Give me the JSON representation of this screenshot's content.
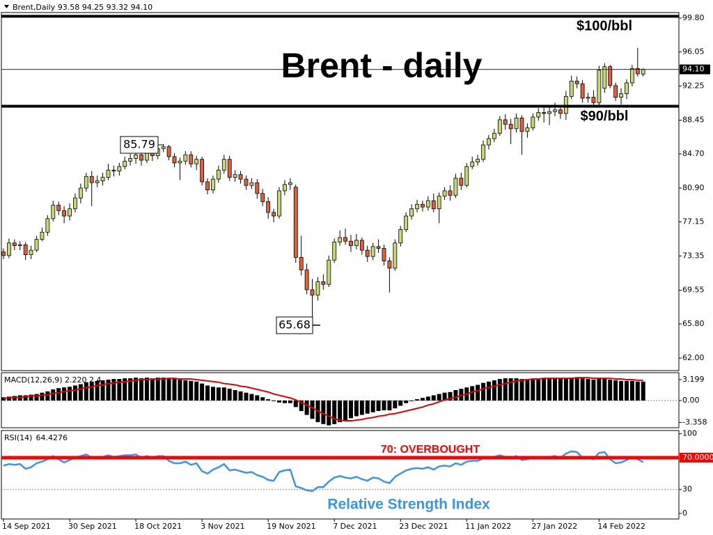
{
  "chart_data": {
    "type": "candlestick",
    "header": "Brent,Daily  93.58 94.25 93.32 94.10",
    "title": "Brent - daily",
    "categories": [
      "14 Sep 2021",
      null,
      null,
      null,
      null,
      null,
      null,
      null,
      null,
      null,
      null,
      null,
      "30 Sep 2021",
      null,
      null,
      null,
      null,
      null,
      null,
      null,
      null,
      null,
      null,
      null,
      "18 Oct 2021",
      null,
      null,
      null,
      null,
      null,
      null,
      null,
      null,
      null,
      null,
      null,
      "3 Nov 2021",
      null,
      null,
      null,
      null,
      null,
      null,
      null,
      null,
      null,
      null,
      null,
      "19 Nov 2021",
      null,
      null,
      null,
      null,
      null,
      null,
      null,
      null,
      null,
      null,
      null,
      "7 Dec 2021",
      null,
      null,
      null,
      null,
      null,
      null,
      null,
      null,
      null,
      null,
      null,
      "23 Dec 2021",
      null,
      null,
      null,
      null,
      null,
      null,
      null,
      null,
      null,
      null,
      null,
      "11 Jan 2022",
      null,
      null,
      null,
      null,
      null,
      null,
      null,
      null,
      null,
      null,
      null,
      "27 Jan 2022",
      null,
      null,
      null,
      null,
      null,
      null,
      null,
      null,
      null,
      null,
      null,
      "14 Feb 2022",
      null,
      null,
      null,
      null,
      null,
      null,
      null,
      null
    ],
    "ohlc": [
      [
        73.8,
        74.2,
        73.0,
        73.4
      ],
      [
        73.4,
        75.3,
        73.1,
        74.8
      ],
      [
        74.8,
        75.2,
        74.0,
        74.5
      ],
      [
        74.5,
        75.0,
        74.0,
        74.6
      ],
      [
        74.6,
        74.9,
        72.9,
        73.5
      ],
      [
        73.5,
        74.5,
        73.0,
        74.0
      ],
      [
        74.0,
        75.6,
        73.8,
        75.2
      ],
      [
        75.2,
        76.5,
        75.0,
        76.0
      ],
      [
        76.0,
        77.9,
        75.6,
        77.5
      ],
      [
        77.5,
        79.5,
        77.2,
        79.0
      ],
      [
        79.0,
        79.4,
        77.9,
        78.4
      ],
      [
        78.4,
        78.9,
        77.0,
        77.8
      ],
      [
        77.8,
        79.2,
        77.3,
        78.6
      ],
      [
        78.6,
        80.3,
        78.2,
        79.8
      ],
      [
        79.8,
        81.4,
        79.2,
        80.9
      ],
      [
        80.9,
        82.6,
        80.5,
        82.2
      ],
      [
        82.2,
        82.8,
        78.9,
        81.5
      ],
      [
        81.5,
        82.3,
        81.0,
        81.7
      ],
      [
        81.7,
        82.6,
        81.2,
        82.1
      ],
      [
        82.1,
        83.6,
        81.8,
        82.9
      ],
      [
        82.9,
        83.4,
        82.2,
        82.8
      ],
      [
        82.8,
        83.7,
        82.3,
        83.3
      ],
      [
        83.3,
        84.4,
        83.0,
        83.9
      ],
      [
        83.9,
        84.7,
        83.4,
        84.2
      ],
      [
        84.2,
        85.0,
        83.6,
        84.6
      ],
      [
        84.6,
        85.1,
        83.4,
        84.0
      ],
      [
        84.0,
        85.3,
        83.7,
        84.8
      ],
      [
        84.8,
        85.4,
        83.9,
        84.5
      ],
      [
        84.5,
        85.7,
        84.1,
        85.3
      ],
      [
        85.3,
        85.79,
        84.9,
        85.5
      ],
      [
        85.5,
        85.7,
        84.0,
        84.4
      ],
      [
        84.4,
        84.8,
        83.2,
        83.7
      ],
      [
        83.7,
        84.3,
        81.8,
        83.9
      ],
      [
        83.9,
        85.0,
        83.5,
        84.6
      ],
      [
        84.6,
        85.0,
        83.2,
        83.6
      ],
      [
        83.6,
        84.5,
        82.9,
        84.1
      ],
      [
        84.1,
        84.4,
        81.2,
        81.6
      ],
      [
        81.6,
        82.0,
        80.2,
        80.7
      ],
      [
        80.7,
        82.3,
        80.3,
        81.9
      ],
      [
        81.9,
        83.4,
        81.5,
        82.9
      ],
      [
        82.9,
        84.6,
        82.5,
        84.1
      ],
      [
        84.1,
        84.5,
        81.7,
        82.1
      ],
      [
        82.1,
        82.9,
        81.6,
        82.4
      ],
      [
        82.4,
        82.8,
        81.4,
        81.9
      ],
      [
        81.9,
        82.3,
        80.7,
        81.2
      ],
      [
        81.2,
        82.0,
        80.8,
        81.5
      ],
      [
        81.5,
        81.9,
        79.7,
        80.3
      ],
      [
        80.3,
        80.8,
        78.9,
        79.4
      ],
      [
        79.4,
        79.9,
        77.5,
        78.2
      ],
      [
        78.2,
        78.6,
        77.1,
        77.8
      ],
      [
        77.8,
        81.0,
        77.5,
        80.6
      ],
      [
        80.6,
        81.8,
        80.1,
        81.3
      ],
      [
        81.3,
        82.0,
        80.7,
        81.5
      ],
      [
        81.0,
        81.3,
        72.6,
        73.2
      ],
      [
        73.2,
        75.6,
        71.2,
        71.8
      ],
      [
        71.8,
        72.5,
        69.1,
        69.6
      ],
      [
        69.6,
        70.8,
        65.68,
        69.0
      ],
      [
        69.0,
        71.0,
        68.4,
        70.5
      ],
      [
        70.5,
        71.3,
        69.6,
        70.2
      ],
      [
        70.2,
        73.4,
        69.9,
        72.9
      ],
      [
        72.9,
        75.3,
        72.6,
        74.9
      ],
      [
        74.9,
        76.2,
        74.5,
        75.4
      ],
      [
        75.4,
        76.4,
        74.6,
        75.0
      ],
      [
        75.0,
        75.7,
        73.8,
        74.5
      ],
      [
        74.5,
        75.8,
        74.1,
        75.1
      ],
      [
        75.1,
        75.4,
        73.5,
        74.0
      ],
      [
        74.0,
        74.5,
        72.7,
        73.3
      ],
      [
        73.3,
        74.8,
        72.9,
        74.4
      ],
      [
        74.4,
        75.2,
        73.7,
        74.2
      ],
      [
        74.2,
        74.6,
        72.3,
        72.8
      ],
      [
        72.8,
        73.2,
        69.3,
        72.0
      ],
      [
        72.0,
        75.2,
        71.7,
        74.8
      ],
      [
        74.8,
        76.7,
        74.4,
        76.3
      ],
      [
        76.3,
        78.2,
        76.0,
        77.8
      ],
      [
        77.8,
        79.1,
        77.4,
        78.6
      ],
      [
        78.6,
        79.6,
        78.2,
        79.1
      ],
      [
        79.1,
        79.5,
        78.3,
        78.8
      ],
      [
        78.8,
        80.0,
        78.4,
        79.5
      ],
      [
        79.5,
        80.3,
        78.2,
        78.6
      ],
      [
        78.6,
        80.4,
        77.0,
        80.0
      ],
      [
        80.0,
        81.0,
        79.6,
        80.6
      ],
      [
        80.6,
        81.2,
        79.5,
        80.1
      ],
      [
        80.1,
        82.5,
        79.8,
        82.0
      ],
      [
        82.0,
        82.6,
        80.7,
        81.2
      ],
      [
        81.2,
        83.7,
        81.0,
        83.3
      ],
      [
        83.3,
        84.4,
        83.0,
        83.8
      ],
      [
        83.8,
        84.6,
        83.4,
        84.1
      ],
      [
        84.1,
        86.2,
        83.8,
        85.7
      ],
      [
        85.7,
        86.8,
        85.2,
        86.4
      ],
      [
        86.4,
        87.5,
        86.0,
        87.0
      ],
      [
        87.0,
        88.9,
        86.7,
        88.5
      ],
      [
        88.5,
        89.1,
        87.4,
        88.0
      ],
      [
        88.0,
        88.6,
        85.8,
        87.5
      ],
      [
        87.5,
        89.2,
        87.1,
        88.7
      ],
      [
        88.7,
        89.0,
        84.6,
        87.2
      ],
      [
        87.2,
        88.1,
        86.5,
        87.6
      ],
      [
        87.6,
        89.2,
        87.3,
        88.8
      ],
      [
        88.8,
        89.8,
        88.4,
        89.3
      ],
      [
        89.3,
        90.0,
        88.2,
        89.2
      ],
      [
        89.2,
        89.9,
        87.9,
        89.4
      ],
      [
        89.4,
        90.4,
        88.9,
        89.6
      ],
      [
        89.6,
        90.0,
        88.6,
        89.2
      ],
      [
        89.2,
        91.7,
        88.5,
        91.1
      ],
      [
        91.1,
        93.4,
        90.8,
        92.8
      ],
      [
        92.8,
        93.3,
        92.0,
        92.5
      ],
      [
        92.5,
        92.9,
        90.4,
        90.9
      ],
      [
        90.9,
        91.5,
        90.4,
        91.0
      ],
      [
        91.0,
        91.8,
        89.9,
        90.4
      ],
      [
        90.4,
        94.5,
        90.1,
        94.0
      ],
      [
        92.0,
        94.8,
        91.5,
        94.4
      ],
      [
        94.4,
        94.6,
        92.0,
        92.3
      ],
      [
        92.3,
        92.6,
        90.6,
        91.0
      ],
      [
        91.0,
        92.0,
        90.2,
        91.4
      ],
      [
        91.4,
        93.0,
        90.8,
        92.6
      ],
      [
        92.6,
        94.6,
        92.2,
        94.2
      ],
      [
        94.2,
        96.5,
        93.3,
        93.6
      ],
      [
        93.58,
        94.25,
        93.32,
        94.1
      ]
    ],
    "up_color": "#c9d873",
    "down_color": "#e4603a",
    "ylim": [
      60.61,
      100.42
    ],
    "yticks": [
      {
        "value": 99.8,
        "label": "99.80"
      },
      96.05,
      92.25,
      88.45,
      {
        "value": 84.7,
        "label": "84.70"
      },
      {
        "value": 80.9,
        "label": "80.90"
      },
      77.15,
      73.35,
      69.55,
      {
        "value": 65.8,
        "label": "65.80"
      },
      {
        "value": 62,
        "label": "62.00"
      }
    ],
    "last_price": {
      "value": 94.1,
      "label": "94.10"
    },
    "levels": [
      {
        "value": 100,
        "label": "$100/bbl"
      },
      {
        "value": 90,
        "label": "$90/bbl"
      }
    ],
    "macd": {
      "header": "MACD(12,26,9) 2.220 2.4",
      "ylim": [
        -4.16,
        4.26
      ],
      "yticks": [
        3.199,
        {
          "value": 0,
          "label": "0.00"
        },
        -3.358
      ],
      "histogram": [
        0.5,
        0.6,
        0.7,
        0.8,
        0.8,
        0.9,
        1.0,
        1.2,
        1.4,
        1.7,
        1.9,
        2.0,
        2.1,
        2.3,
        2.5,
        2.8,
        2.9,
        3.0,
        3.1,
        3.2,
        3.3,
        3.3,
        3.4,
        3.4,
        3.5,
        3.4,
        3.5,
        3.4,
        3.5,
        3.5,
        3.4,
        3.3,
        3.2,
        3.1,
        3.0,
        2.9,
        2.6,
        2.3,
        2.1,
        2.0,
        2.0,
        1.8,
        1.6,
        1.4,
        1.2,
        1.0,
        0.8,
        0.5,
        0.2,
        -0.1,
        -0.3,
        -0.4,
        -0.4,
        -1.0,
        -1.6,
        -2.2,
        -2.8,
        -3.3,
        -3.6,
        -3.8,
        -3.6,
        -3.3,
        -3.0,
        -2.7,
        -2.4,
        -2.2,
        -2.0,
        -1.8,
        -1.6,
        -1.5,
        -1.5,
        -1.2,
        -0.8,
        -0.4,
        -0.1,
        0.2,
        0.4,
        0.6,
        0.8,
        1.0,
        1.2,
        1.3,
        1.6,
        1.8,
        2.0,
        2.2,
        2.4,
        2.7,
        2.9,
        3.1,
        3.3,
        3.4,
        3.4,
        3.4,
        3.3,
        3.3,
        3.3,
        3.3,
        3.3,
        3.3,
        3.3,
        3.3,
        3.4,
        3.5,
        3.5,
        3.4,
        3.3,
        3.2,
        3.3,
        3.3,
        3.2,
        3.1,
        3.0,
        3.0,
        3.0,
        2.9,
        2.9
      ],
      "signal": [
        0.3,
        0.4,
        0.5,
        0.5,
        0.6,
        0.7,
        0.7,
        0.8,
        0.9,
        1.1,
        1.2,
        1.4,
        1.5,
        1.6,
        1.8,
        2.0,
        2.1,
        2.3,
        2.4,
        2.6,
        2.7,
        2.8,
        2.9,
        3.0,
        3.1,
        3.2,
        3.2,
        3.3,
        3.3,
        3.3,
        3.4,
        3.4,
        3.3,
        3.3,
        3.3,
        3.2,
        3.1,
        3.0,
        2.9,
        2.8,
        2.6,
        2.5,
        2.4,
        2.2,
        2.1,
        1.9,
        1.7,
        1.5,
        1.3,
        1.0,
        0.8,
        0.6,
        0.4,
        0.1,
        -0.3,
        -0.7,
        -1.1,
        -1.6,
        -2.0,
        -2.4,
        -2.8,
        -3.0,
        -3.1,
        -3.1,
        -3.0,
        -2.9,
        -2.7,
        -2.6,
        -2.4,
        -2.3,
        -2.1,
        -2.0,
        -1.8,
        -1.6,
        -1.4,
        -1.2,
        -1.0,
        -0.7,
        -0.5,
        -0.2,
        0.1,
        0.3,
        0.5,
        0.8,
        1.0,
        1.3,
        1.5,
        1.8,
        2.0,
        2.2,
        2.4,
        2.6,
        2.8,
        3.0,
        3.1,
        3.2,
        3.3,
        3.3,
        3.4,
        3.4,
        3.4,
        3.4,
        3.4,
        3.4,
        3.5,
        3.5,
        3.5,
        3.4,
        3.4,
        3.4,
        3.4,
        3.3,
        3.3,
        3.2,
        3.2,
        3.1,
        3.1
      ],
      "histogram_color": "#000000",
      "signal_color": "#e00000"
    },
    "rsi": {
      "name": "RSI(14)",
      "values": [
        60,
        62,
        61,
        62,
        56,
        58,
        63,
        65,
        68,
        72,
        68,
        64,
        67,
        70,
        72,
        74,
        70,
        70,
        71,
        73,
        71,
        72,
        73,
        73,
        74,
        70,
        72,
        70,
        72,
        72,
        66,
        63,
        63,
        65,
        61,
        63,
        53,
        50,
        55,
        58,
        62,
        54,
        55,
        53,
        51,
        52,
        48,
        46,
        42,
        41,
        52,
        54,
        55,
        34,
        32,
        29,
        28,
        33,
        33,
        40,
        45,
        47,
        45,
        44,
        46,
        43,
        41,
        45,
        44,
        40,
        38,
        46,
        50,
        54,
        56,
        57,
        56,
        58,
        55,
        59,
        60,
        59,
        63,
        61,
        65,
        66,
        66,
        69,
        70,
        71,
        73,
        71,
        69,
        72,
        67,
        68,
        70,
        71,
        71,
        71,
        72,
        70,
        75,
        78,
        77,
        70,
        70,
        68,
        76,
        77,
        68,
        63,
        64,
        67,
        71,
        68,
        64.4276
      ],
      "color": "#3b95e6",
      "ylim": [
        -7,
        104.1
      ],
      "yticks": [
        100,
        30,
        0
      ],
      "level": {
        "value": 70,
        "label": "70.0000"
      },
      "level_label": "70: OVERBOUGHT",
      "level_color": "#ff0000",
      "caption": "Relative Strength Index"
    }
  }
}
